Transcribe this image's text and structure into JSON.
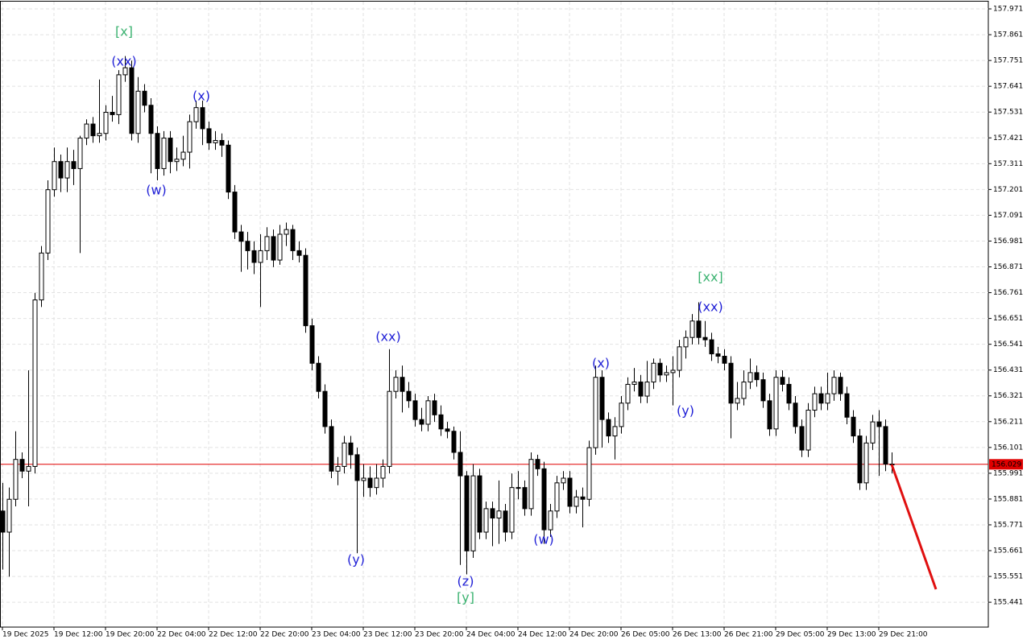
{
  "chart_data": {
    "type": "candlestick",
    "grid": true,
    "ylim": [
      155.335,
      158.002
    ],
    "yticks": [
      157.971,
      157.861,
      157.751,
      157.641,
      157.531,
      157.421,
      157.311,
      157.201,
      157.091,
      156.981,
      156.871,
      156.761,
      156.651,
      156.541,
      156.431,
      156.321,
      156.211,
      156.101,
      155.991,
      155.881,
      155.771,
      155.661,
      155.551,
      155.441
    ],
    "current_price": 156.029,
    "current_price_color": "#e00000",
    "up_color": "#ffffff",
    "down_color": "#000000",
    "categories": [
      "19 Dec 2025",
      null,
      null,
      null,
      null,
      null,
      null,
      null,
      "19 Dec 12:00",
      null,
      null,
      null,
      null,
      null,
      null,
      null,
      "19 Dec 20:00",
      null,
      null,
      null,
      null,
      null,
      null,
      null,
      "22 Dec 04:00",
      null,
      null,
      null,
      null,
      null,
      null,
      null,
      "22 Dec 12:00",
      null,
      null,
      null,
      null,
      null,
      null,
      null,
      "22 Dec 20:00",
      null,
      null,
      null,
      null,
      null,
      null,
      null,
      "23 Dec 04:00",
      null,
      null,
      null,
      null,
      null,
      null,
      null,
      "23 Dec 12:00",
      null,
      null,
      null,
      null,
      null,
      null,
      null,
      "23 Dec 20:00",
      null,
      null,
      null,
      null,
      null,
      null,
      null,
      "24 Dec 04:00",
      null,
      null,
      null,
      null,
      null,
      null,
      null,
      "24 Dec 12:00",
      null,
      null,
      null,
      null,
      null,
      null,
      null,
      "24 Dec 20:00",
      null,
      null,
      null,
      null,
      null,
      null,
      null,
      "26 Dec 05:00",
      null,
      null,
      null,
      null,
      null,
      null,
      null,
      "26 Dec 13:00",
      null,
      null,
      null,
      null,
      null,
      null,
      null,
      "26 Dec 21:00",
      null,
      null,
      null,
      null,
      null,
      null,
      null,
      "29 Dec 05:00",
      null,
      null,
      null,
      null,
      null,
      null,
      null,
      "29 Dec 13:00",
      null,
      null,
      null,
      null,
      null,
      null,
      null,
      "29 Dec 21:00",
      null,
      null
    ],
    "open": [
      155.83,
      155.74,
      155.88,
      156.05,
      156.0,
      156.02,
      156.73,
      156.93,
      157.2,
      157.32,
      157.25,
      157.32,
      157.29,
      157.42,
      157.48,
      157.43,
      157.44,
      157.53,
      157.52,
      157.69,
      157.72,
      157.44,
      157.62,
      157.56,
      157.44,
      157.29,
      157.42,
      157.32,
      157.33,
      157.36,
      157.49,
      157.55,
      157.46,
      157.4,
      157.41,
      157.39,
      157.19,
      157.02,
      156.98,
      156.94,
      156.89,
      156.94,
      157.0,
      156.9,
      157.01,
      157.03,
      156.94,
      156.92,
      156.62,
      156.46,
      156.34,
      156.19,
      156.0,
      156.02,
      156.12,
      156.07,
      155.96,
      155.97,
      155.93,
      155.97,
      156.02,
      156.34,
      156.4,
      156.34,
      156.3,
      156.22,
      156.2,
      156.3,
      156.24,
      156.18,
      156.17,
      156.08,
      155.98,
      155.66,
      155.98,
      155.74,
      155.84,
      155.8,
      155.83,
      155.74,
      155.93,
      155.93,
      155.84,
      156.05,
      156.01,
      155.75,
      155.83,
      155.95,
      155.97,
      155.85,
      155.89,
      155.88,
      156.1,
      156.4,
      156.22,
      156.15,
      156.19,
      156.29,
      156.37,
      156.38,
      156.32,
      156.38,
      156.46,
      156.41,
      156.42,
      156.43,
      156.53,
      156.57,
      156.64,
      156.57,
      156.56,
      156.5,
      156.49,
      156.46,
      156.29,
      156.31,
      156.38,
      156.42,
      156.39,
      156.3,
      156.18,
      156.4,
      156.37,
      156.29,
      156.19,
      156.09,
      156.26,
      156.33,
      156.29,
      156.33,
      156.4,
      156.33,
      156.23,
      156.15,
      155.95,
      156.12,
      156.21,
      156.19,
      156.03
    ],
    "high": [
      155.95,
      155.93,
      156.17,
      156.08,
      156.43,
      156.76,
      156.96,
      157.24,
      157.38,
      157.35,
      157.38,
      157.37,
      157.43,
      157.5,
      157.51,
      157.67,
      157.56,
      157.6,
      157.71,
      157.77,
      157.75,
      157.68,
      157.65,
      157.59,
      157.47,
      157.45,
      157.45,
      157.38,
      157.43,
      157.52,
      157.58,
      157.58,
      157.49,
      157.45,
      157.44,
      157.41,
      157.22,
      157.05,
      157.02,
      156.98,
      157.01,
      157.04,
      157.03,
      157.05,
      157.06,
      157.05,
      156.98,
      156.95,
      156.65,
      156.49,
      156.37,
      156.22,
      156.06,
      156.15,
      156.15,
      156.1,
      156.03,
      156.02,
      156.03,
      156.05,
      156.52,
      156.43,
      156.45,
      156.38,
      156.33,
      156.27,
      156.32,
      156.33,
      156.28,
      156.21,
      156.19,
      156.17,
      156.0,
      156.03,
      156.01,
      155.87,
      155.87,
      155.96,
      155.86,
      155.99,
      156.0,
      155.96,
      156.08,
      156.07,
      156.04,
      155.86,
      155.98,
      156.0,
      156.0,
      155.92,
      155.93,
      156.13,
      156.45,
      156.43,
      156.25,
      156.23,
      156.32,
      156.4,
      156.44,
      156.41,
      156.47,
      156.48,
      156.48,
      156.45,
      156.49,
      156.56,
      156.6,
      156.67,
      156.72,
      156.64,
      156.59,
      156.53,
      156.52,
      156.49,
      156.38,
      156.43,
      156.48,
      156.45,
      156.42,
      156.33,
      156.43,
      156.43,
      156.4,
      156.32,
      156.22,
      156.29,
      156.36,
      156.36,
      156.42,
      156.43,
      156.42,
      156.36,
      156.26,
      156.18,
      156.15,
      156.24,
      156.26,
      156.22,
      156.08
    ],
    "low": [
      155.58,
      155.55,
      155.85,
      155.97,
      155.85,
      155.99,
      156.7,
      156.9,
      157.17,
      157.19,
      157.19,
      157.22,
      156.93,
      157.39,
      157.4,
      157.4,
      157.41,
      157.49,
      157.48,
      157.66,
      157.41,
      157.4,
      157.53,
      157.27,
      157.24,
      157.26,
      157.27,
      157.28,
      157.3,
      157.29,
      157.46,
      157.39,
      157.37,
      157.37,
      157.34,
      157.16,
      156.99,
      156.85,
      156.86,
      156.84,
      156.7,
      156.9,
      156.87,
      156.88,
      156.96,
      156.9,
      156.89,
      156.59,
      156.43,
      156.31,
      156.16,
      155.97,
      155.94,
      155.99,
      156.01,
      155.65,
      155.89,
      155.89,
      155.9,
      155.93,
      155.99,
      156.31,
      156.25,
      156.27,
      156.19,
      156.17,
      156.17,
      156.21,
      156.15,
      156.14,
      156.05,
      155.6,
      155.56,
      155.63,
      155.71,
      155.71,
      155.68,
      155.69,
      155.7,
      155.71,
      155.88,
      155.81,
      155.81,
      155.98,
      155.69,
      155.72,
      155.8,
      155.92,
      155.82,
      155.82,
      155.76,
      155.85,
      156.07,
      156.1,
      156.12,
      156.05,
      156.16,
      156.26,
      156.34,
      156.29,
      156.29,
      156.35,
      156.38,
      156.38,
      156.28,
      156.4,
      156.48,
      156.54,
      156.54,
      156.53,
      156.47,
      156.46,
      156.43,
      156.14,
      156.26,
      156.28,
      156.35,
      156.36,
      156.27,
      156.15,
      156.15,
      156.34,
      156.26,
      156.16,
      156.06,
      156.06,
      156.23,
      156.26,
      156.26,
      156.3,
      156.3,
      156.2,
      156.12,
      155.92,
      155.92,
      156.09,
      155.98,
      156.0,
      155.99
    ],
    "close": [
      155.74,
      155.88,
      156.05,
      156.0,
      156.02,
      156.73,
      156.93,
      157.2,
      157.32,
      157.25,
      157.32,
      157.29,
      157.42,
      157.48,
      157.43,
      157.44,
      157.53,
      157.52,
      157.69,
      157.72,
      157.44,
      157.62,
      157.56,
      157.44,
      157.29,
      157.42,
      157.32,
      157.33,
      157.36,
      157.49,
      157.55,
      157.46,
      157.4,
      157.41,
      157.39,
      157.19,
      157.02,
      156.98,
      156.94,
      156.89,
      156.94,
      157.0,
      156.9,
      157.01,
      157.03,
      156.94,
      156.92,
      156.62,
      156.46,
      156.34,
      156.19,
      156.0,
      156.02,
      156.12,
      156.07,
      155.96,
      155.97,
      155.93,
      155.97,
      156.02,
      156.34,
      156.4,
      156.34,
      156.3,
      156.22,
      156.2,
      156.3,
      156.24,
      156.18,
      156.17,
      156.08,
      155.98,
      155.66,
      155.98,
      155.74,
      155.84,
      155.8,
      155.83,
      155.74,
      155.93,
      155.93,
      155.84,
      156.05,
      156.01,
      155.75,
      155.83,
      155.95,
      155.97,
      155.85,
      155.89,
      155.88,
      156.1,
      156.4,
      156.22,
      156.15,
      156.19,
      156.29,
      156.37,
      156.38,
      156.32,
      156.38,
      156.46,
      156.41,
      156.42,
      156.43,
      156.53,
      156.57,
      156.64,
      156.57,
      156.56,
      156.5,
      156.49,
      156.46,
      156.29,
      156.31,
      156.38,
      156.42,
      156.39,
      156.3,
      156.18,
      156.4,
      156.37,
      156.29,
      156.19,
      156.09,
      156.26,
      156.33,
      156.29,
      156.33,
      156.4,
      156.33,
      156.23,
      156.15,
      155.95,
      156.12,
      156.21,
      156.19,
      156.03,
      156.03
    ],
    "annotations": [
      {
        "text": "[x]",
        "color": "#3cb371"
      },
      {
        "text": "(xx)",
        "color": "#1f1fd6"
      },
      {
        "text": "(x)",
        "color": "#1f1fd6"
      },
      {
        "text": "(w)",
        "color": "#1f1fd6"
      },
      {
        "text": "(xx)",
        "color": "#1f1fd6"
      },
      {
        "text": "(y)",
        "color": "#1f1fd6"
      },
      {
        "text": "(z)",
        "color": "#1f1fd6"
      },
      {
        "text": "[y]",
        "color": "#3cb371"
      },
      {
        "text": "(w)",
        "color": "#1f1fd6"
      },
      {
        "text": "(x)",
        "color": "#1f1fd6"
      },
      {
        "text": "(y)",
        "color": "#1f1fd6"
      },
      {
        "text": "[xx]",
        "color": "#3cb371"
      },
      {
        "text": "(xx)",
        "color": "#1f1fd6"
      }
    ]
  }
}
